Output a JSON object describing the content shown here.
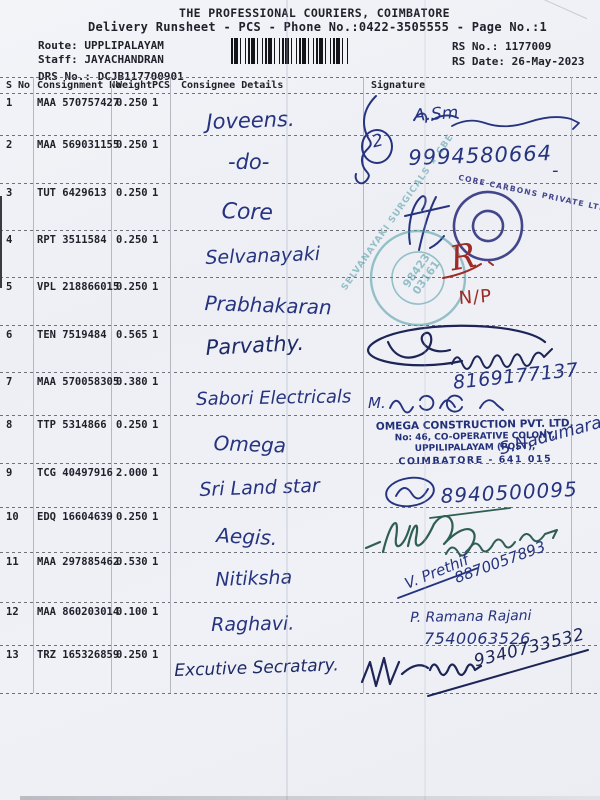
{
  "header": {
    "title": "THE PROFESSIONAL COURIERS, COIMBATORE",
    "subtitle": "Delivery Runsheet - PCS - Phone No.:0422-3505555 - Page No.:1",
    "route": "Route: UPPLIPALAYAM",
    "staff": "Staff: JAYACHANDRAN",
    "drs_no": "DRS No.: DCJB117700901",
    "rs_no": "RS No.: 1177009",
    "rs_date": "RS Date: 26-May-2023"
  },
  "table": {
    "columns": [
      "S No",
      "Consignment No",
      "Weight",
      "PCS",
      "Consignee Details",
      "Signature"
    ],
    "rows": [
      {
        "sno": "1",
        "consignment": "MAA 570757427",
        "weight": "0.250",
        "pcs": "1",
        "consignee": "Joveens."
      },
      {
        "sno": "2",
        "consignment": "MAA 569031155",
        "weight": "0.250",
        "pcs": "1",
        "consignee": "-do-"
      },
      {
        "sno": "3",
        "consignment": "TUT 6429613",
        "weight": "0.250",
        "pcs": "1",
        "consignee": "Core"
      },
      {
        "sno": "4",
        "consignment": "RPT 3511584",
        "weight": "0.250",
        "pcs": "1",
        "consignee": "Selvanayaki"
      },
      {
        "sno": "5",
        "consignment": "VPL 218866015",
        "weight": "0.250",
        "pcs": "1",
        "consignee": "Prabhakaran"
      },
      {
        "sno": "6",
        "consignment": "TEN 7519484",
        "weight": "0.565",
        "pcs": "1",
        "consignee": "Parvathy."
      },
      {
        "sno": "7",
        "consignment": "MAA 570058305",
        "weight": "0.380",
        "pcs": "1",
        "consignee": "Sabori Electricals"
      },
      {
        "sno": "8",
        "consignment": "TTP 5314866",
        "weight": "0.250",
        "pcs": "1",
        "consignee": "Omega"
      },
      {
        "sno": "9",
        "consignment": "TCG 40497916",
        "weight": "2.000",
        "pcs": "1",
        "consignee": "Sri Land star"
      },
      {
        "sno": "10",
        "consignment": "EDQ 16604639",
        "weight": "0.250",
        "pcs": "1",
        "consignee": "Aegis."
      },
      {
        "sno": "11",
        "consignment": "MAA 297885462",
        "weight": "0.530",
        "pcs": "1",
        "consignee": "Nitiksha"
      },
      {
        "sno": "12",
        "consignment": "MAA 860203014",
        "weight": "0.100",
        "pcs": "1",
        "consignee": "Raghavi."
      },
      {
        "sno": "13",
        "consignment": "TRZ 165326859",
        "weight": "0.250",
        "pcs": "1",
        "consignee": "Excutive Secratary."
      }
    ]
  },
  "signatures": {
    "rows1_2": {
      "scribble_name": "A.Sm",
      "count_mark": "2",
      "phone": "9994580664",
      "dash": "-"
    },
    "row3_stamp_ring": "CORE CARBONS PRIVATE LTD. ★",
    "row4_stamp": {
      "ring": "SELVANAYAKI SURGICALS ★ CBE",
      "center1": "98423",
      "center2": "03161",
      "red_mark": "R"
    },
    "row5_red_text": "N/P",
    "row7": {
      "phone": "8169177137",
      "initial": "M."
    },
    "row8_stamp": {
      "line1": "OMEGA CONSTRUCTION PVT. LTD,",
      "line2": "No: 46, CO-OPERATIVE COLONY,",
      "line3": "UPPILIPALAYAM (POST),",
      "line4": "COIMBATORE - 641 015",
      "signer": "S.Nadumaran"
    },
    "row9_phone": "8940500095",
    "row11": {
      "signer": "V. Prethif",
      "phone": "8870057893"
    },
    "row12": {
      "signer": "P. Ramana Rajani",
      "phone": "7540063526"
    },
    "row13_phone": "9340733532"
  },
  "colors": {
    "ink_blue": "#26337f",
    "ink_navy": "#1d2556",
    "ink_green": "#2f5e55",
    "ink_red": "#9e2b25",
    "stamp_navy": "#2c2f7d",
    "stamp_teal": "#4b98a2",
    "stamp_omega_navy": "#23307a"
  }
}
